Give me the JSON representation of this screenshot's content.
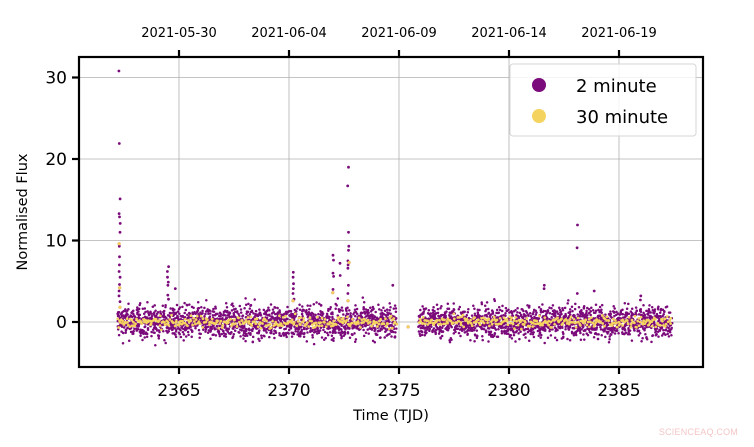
{
  "chart_data": {
    "type": "scatter",
    "title": "",
    "xlabel": "Time (TJD)",
    "ylabel": "Normalised Flux",
    "xlim": [
      2361.5,
      2389.3
    ],
    "ylim": [
      -5.5,
      32.5
    ],
    "xticks": [
      2365,
      2370,
      2375,
      2380,
      2385
    ],
    "xtick_labels": [
      "2365",
      "2370",
      "2375",
      "2380",
      "2385"
    ],
    "yticks": [
      0,
      10,
      20,
      30
    ],
    "ytick_labels": [
      "0",
      "10",
      "20",
      "30"
    ],
    "secondary_xaxis": {
      "position": "top",
      "ticks": [
        2365,
        2370,
        2375,
        2380,
        2385
      ],
      "tick_labels": [
        "2021-05-30",
        "2021-06-04",
        "2021-06-09",
        "2021-06-14",
        "2021-06-19"
      ]
    },
    "grid": true,
    "legend_position": "upper right",
    "series": [
      {
        "name": "2 minute",
        "color": "#7b0a7b",
        "segments": [
          [
            2362.2,
            2374.9
          ],
          [
            2375.9,
            2387.4
          ]
        ],
        "baseline": 0,
        "scatter_sd": 1.0,
        "band_range": [
          -3,
          3
        ],
        "flares": [
          {
            "x": 2362.3,
            "peak": 30.8,
            "points": [
              30.8,
              21.9,
              15.1,
              13.3,
              12.9,
              12.1,
              11.0,
              9.3,
              8.0,
              7.0,
              6.2,
              5.5,
              4.6,
              3.8,
              3.2,
              2.5
            ]
          },
          {
            "x": 2364.5,
            "peak": 6.8,
            "points": [
              6.8,
              6.2,
              5.5,
              4.9,
              4.5,
              3.3,
              2.8
            ]
          },
          {
            "x": 2364.8,
            "peak": 4.1,
            "points": [
              4.1
            ]
          },
          {
            "x": 2370.2,
            "peak": 6.1,
            "points": [
              6.1,
              5.5,
              4.7,
              4.1,
              3.5,
              2.8
            ]
          },
          {
            "x": 2372.0,
            "peak": 8.2,
            "points": [
              8.2,
              7.6,
              6.0,
              5.6,
              4.0
            ]
          },
          {
            "x": 2372.3,
            "peak": 7.2,
            "points": [
              7.2,
              5.7
            ]
          },
          {
            "x": 2372.7,
            "peak": 19.0,
            "points": [
              19.0,
              16.7,
              11.0,
              9.3,
              8.8,
              7.5,
              7.0,
              6.6,
              4.5,
              3.5
            ]
          },
          {
            "x": 2374.7,
            "peak": 4.5,
            "points": [
              4.5
            ]
          },
          {
            "x": 2381.6,
            "peak": 4.5,
            "points": [
              4.5,
              4.1
            ]
          },
          {
            "x": 2383.1,
            "peak": 11.9,
            "points": [
              11.9,
              9.1,
              3.5
            ]
          },
          {
            "x": 2383.9,
            "peak": 3.8,
            "points": [
              3.8
            ]
          },
          {
            "x": 2386.0,
            "peak": 3.2,
            "points": [
              3.2,
              2.7
            ]
          }
        ]
      },
      {
        "name": "30 minute",
        "color": "#f4d35e",
        "segments": [
          [
            2362.2,
            2374.9
          ],
          [
            2375.9,
            2387.4
          ]
        ],
        "baseline": 0,
        "scatter_sd": 0.35,
        "band_range": [
          -1,
          1
        ],
        "flares": [
          {
            "x": 2362.3,
            "peak": 9.6,
            "points": [
              9.6,
              4.2,
              1.8
            ]
          },
          {
            "x": 2370.2,
            "peak": 2.6,
            "points": [
              2.6
            ]
          },
          {
            "x": 2372.0,
            "peak": 3.6,
            "points": [
              3.6
            ]
          },
          {
            "x": 2372.7,
            "peak": 7.3,
            "points": [
              7.3,
              2.6
            ]
          },
          {
            "x": 2375.4,
            "peak": -0.6,
            "points": [
              -0.6
            ]
          }
        ]
      }
    ]
  },
  "legend": {
    "items": [
      {
        "label": "2 minute",
        "color": "#7b0a7b"
      },
      {
        "label": "30 minute",
        "color": "#f4d35e"
      }
    ]
  },
  "watermark": "SCIENCEAQ.COM"
}
